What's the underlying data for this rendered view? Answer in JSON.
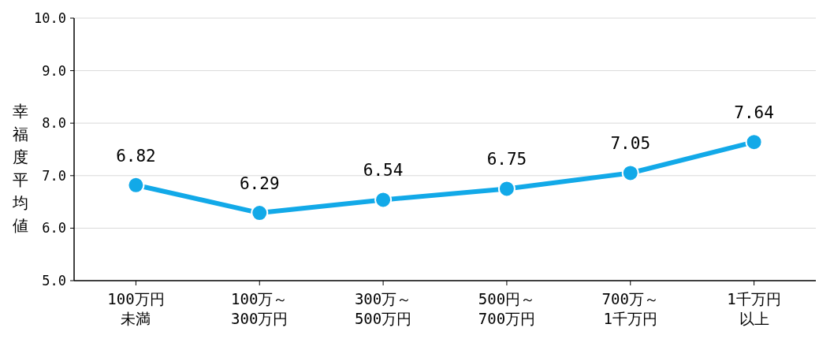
{
  "chart_data": {
    "type": "line",
    "ylabel": "幸福度平均値",
    "categories": [
      "100万円未満",
      "100万～300万円",
      "300万～500万円",
      "500円～700万円",
      "700万～1千万円",
      "1千万円以上"
    ],
    "series": [
      {
        "color": "#12a9e8",
        "values": [
          6.82,
          6.29,
          6.54,
          6.75,
          7.05,
          7.64
        ]
      }
    ],
    "ylim": [
      5,
      10
    ],
    "yticks": [
      {
        "value": 5,
        "label": "5.0"
      },
      {
        "value": 6,
        "label": "6.0"
      },
      {
        "value": 7,
        "label": "7.0"
      },
      {
        "value": 8,
        "label": "8.0"
      },
      {
        "value": 9,
        "label": "9.0"
      },
      {
        "value": 10,
        "label": "10.0"
      }
    ],
    "grid": "y",
    "marker": "circle",
    "line_style": "solid",
    "data_labels": true
  }
}
